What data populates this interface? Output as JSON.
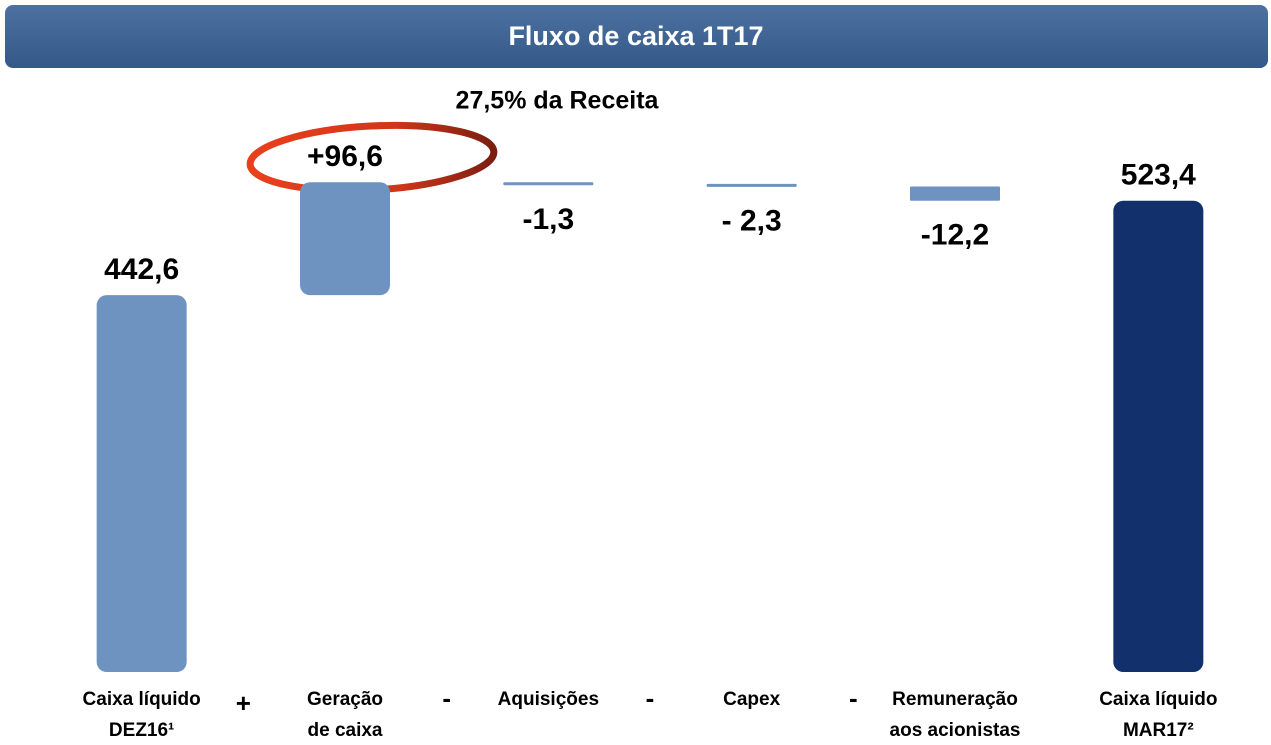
{
  "chart_data": {
    "type": "waterfall",
    "title": "Fluxo de caixa 1T17",
    "annotation": "27,5% da Receita",
    "categories": [
      [
        "Caixa líquido",
        "DEZ16¹"
      ],
      [
        "Geração",
        "de caixa"
      ],
      [
        "Aquisições"
      ],
      [
        "Capex"
      ],
      [
        "Remuneração",
        "aos acionistas"
      ],
      [
        "Caixa líquido",
        "MAR17²"
      ]
    ],
    "operators": [
      "+",
      "-",
      "-",
      "-"
    ],
    "values": [
      442.6,
      96.6,
      -1.3,
      -2.3,
      -12.2,
      523.4
    ],
    "value_labels": [
      "442,6",
      "+96,6",
      "-1,3",
      "- 2,3",
      "-12,2",
      "523,4"
    ],
    "colors": [
      "#6f93c0",
      "#6f93c0",
      "#6f93c0",
      "#6f93c0",
      "#6f93c0",
      "#12306b"
    ],
    "ylim": [
      120,
      560
    ]
  }
}
